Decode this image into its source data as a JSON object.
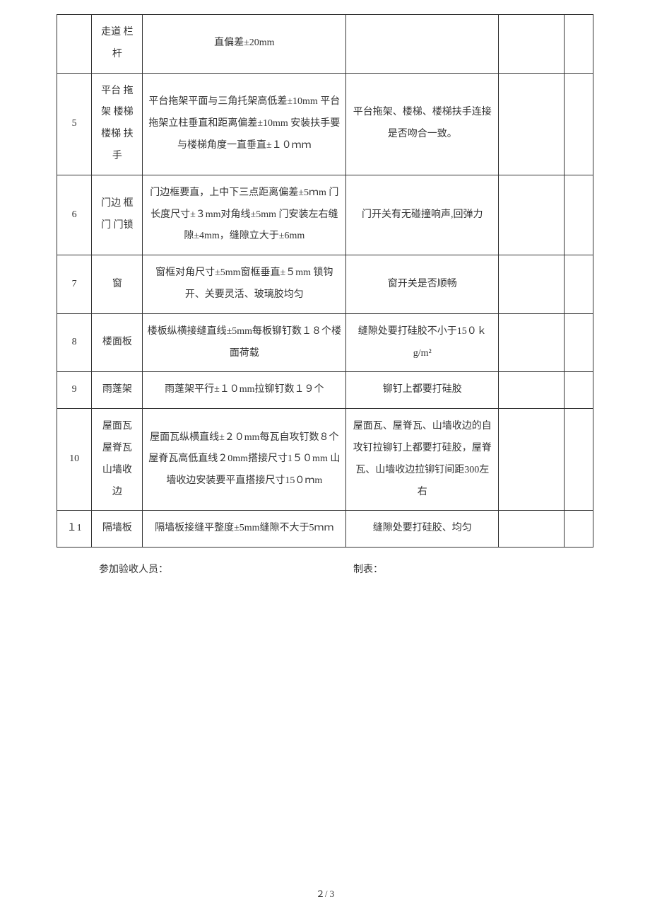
{
  "accent_border_color": "#333333",
  "text_color": "#333333",
  "font_family": "SimSun",
  "base_font_size_pt": 10.5,
  "rows": [
    {
      "num": "",
      "item": "走道 栏杆",
      "req": "直偏差±20mm",
      "note": "",
      "meas": "",
      "res": ""
    },
    {
      "num": "5",
      "item": "平台 拖架 楼梯 楼梯 扶手",
      "req": "平台拖架平面与三角托架高低差±10mm\n平台拖架立柱垂直和距离偏差±10mm\n安装扶手要与楼梯角度一直垂直±１０ｍｍ",
      "note": "平台拖架、楼梯、楼梯扶手连接是否吻合一致。",
      "meas": "",
      "res": ""
    },
    {
      "num": "6",
      "item": "门边 框门 门锁",
      "req": "门边框要直，上中下三点距离偏差±5ｍm\n门长度尺寸±３mm对角线±5mm\n门安装左右缝隙±4mm，缝隙立大于±6mm",
      "note": "门开关有无碰撞响声,回弹力",
      "meas": "",
      "res": ""
    },
    {
      "num": "7",
      "item": "窗",
      "req": "窗框对角尺寸±5mm窗框垂直±５mm\n锁钩开、关要灵活、玻璃胶均匀",
      "note": "窗开关是否顺畅",
      "meas": "",
      "res": ""
    },
    {
      "num": "8",
      "item": "楼面板",
      "req": "楼板纵横接缝直线±5mm每板铆钉数１８个楼面荷载",
      "note": "缝隙处要打硅胶不小于15０ｋg/m²",
      "meas": "",
      "res": ""
    },
    {
      "num": "9",
      "item": "雨蓬架",
      "req": "雨蓬架平行±１０mm拉铆钉数１９个",
      "note": "铆钉上都要打硅胶",
      "meas": "",
      "res": ""
    },
    {
      "num": "10",
      "item": "屋面瓦 屋脊瓦 山墙收 边",
      "req": "屋面瓦纵横直线±２０mm每瓦自攻钉数８个\n屋脊瓦高低直线２0mm搭接尺寸1５０mm\n山墙收边安装要平直搭接尺寸15０ｍm",
      "note": "屋面瓦、屋脊瓦、山墙收边的自攻钉拉铆钉上都要打硅胶，屋脊瓦、山墙收边拉铆钉间距300左右",
      "meas": "",
      "res": ""
    },
    {
      "num": "１1",
      "item": "隔墙板",
      "req": "隔墙板接缝平整度±5mm缝隙不大于5ｍｍ",
      "note": "缝隙处要打硅胶、均匀",
      "meas": "",
      "res": ""
    }
  ],
  "footer": {
    "left_label": "参加验收人员：",
    "right_label": "制表："
  },
  "page": "２/ 3"
}
